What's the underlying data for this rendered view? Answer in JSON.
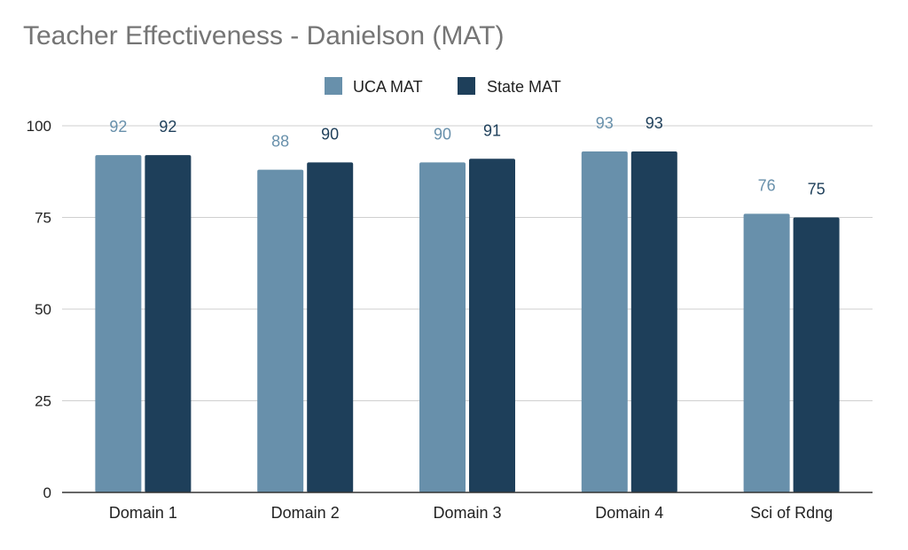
{
  "chart_data": {
    "type": "bar",
    "title": "Teacher Effectiveness - Danielson (MAT)",
    "xlabel": "",
    "ylabel": "",
    "categories": [
      "Domain 1",
      "Domain 2",
      "Domain 3",
      "Domain 4",
      "Sci of Rdng"
    ],
    "series": [
      {
        "name": "UCA MAT",
        "color": "#6890ab",
        "label_color": "#6890ab",
        "values": [
          92,
          88,
          90,
          93,
          76
        ]
      },
      {
        "name": "State MAT",
        "color": "#1e3f5a",
        "label_color": "#1e3f5a",
        "values": [
          92,
          90,
          91,
          93,
          75
        ]
      }
    ],
    "ylim": [
      0,
      100
    ],
    "yticks": [
      0,
      25,
      50,
      75,
      100
    ],
    "grid": true,
    "legend_position": "top"
  }
}
